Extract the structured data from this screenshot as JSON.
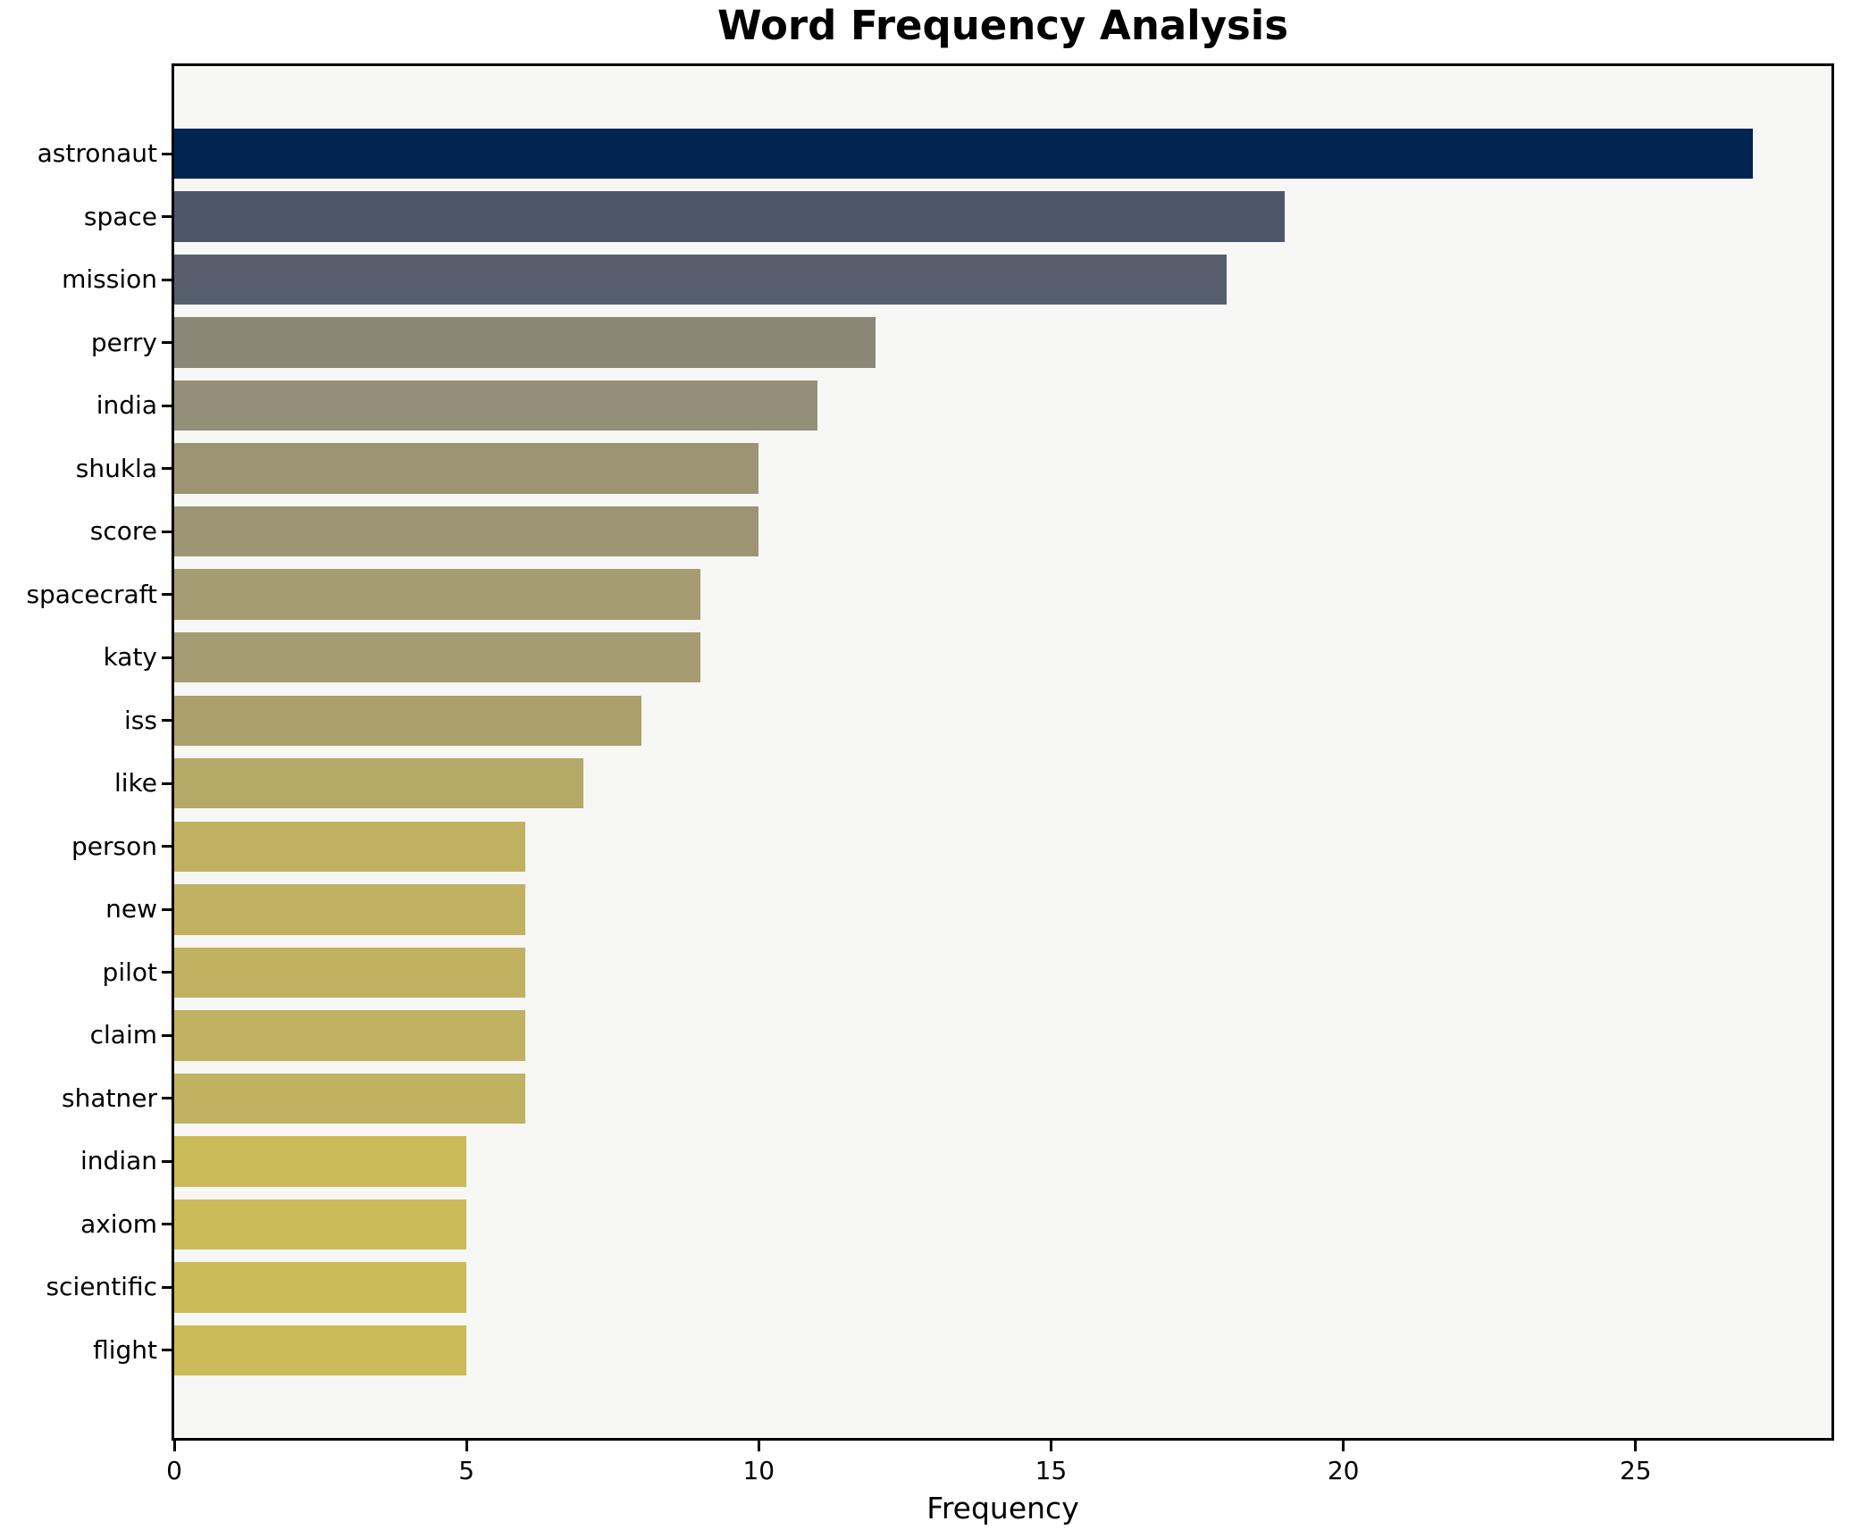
{
  "chart_data": {
    "type": "bar",
    "orientation": "horizontal",
    "title": "Word Frequency Analysis",
    "xlabel": "Frequency",
    "categories": [
      "astronaut",
      "space",
      "mission",
      "perry",
      "india",
      "shukla",
      "score",
      "spacecraft",
      "katy",
      "iss",
      "like",
      "person",
      "new",
      "pilot",
      "claim",
      "shatner",
      "indian",
      "axiom",
      "scientific",
      "flight"
    ],
    "values": [
      27,
      19,
      18,
      12,
      11,
      10,
      10,
      9,
      9,
      8,
      7,
      6,
      6,
      6,
      6,
      6,
      5,
      5,
      5,
      5
    ],
    "bar_colors": [
      "#012451",
      "#4d566a",
      "#565e6d",
      "#8a8776",
      "#938f78",
      "#9c9574",
      "#9c9574",
      "#a59c71",
      "#a59c71",
      "#aca06d",
      "#b4a967",
      "#c1b262",
      "#c1b262",
      "#c1b262",
      "#c1b262",
      "#c1b262",
      "#cabb58",
      "#cabb58",
      "#cabb58",
      "#cabb58"
    ],
    "xlim": [
      0,
      28.35
    ],
    "xticks": [
      0,
      5,
      10,
      15,
      20,
      25
    ],
    "grid": false,
    "legend": null,
    "plot_bg": "#f7f7f5",
    "fig_bg": "#ffffff",
    "spine_color": "#000000"
  }
}
